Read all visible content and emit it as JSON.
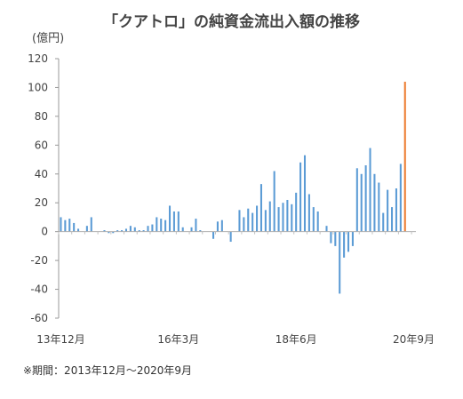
{
  "chart_data": {
    "type": "bar",
    "title": "「クアトロ」の純資金流出入額の推移",
    "ylabel": "(億円)",
    "xlabel": "",
    "ylim": [
      -60,
      120
    ],
    "yticks": [
      -60,
      -40,
      -20,
      0,
      20,
      40,
      60,
      80,
      100,
      120
    ],
    "grid": false,
    "x_tick_labels": [
      "13年12月",
      "16年3月",
      "18年6月",
      "20年9月"
    ],
    "x_tick_indices": [
      0,
      27,
      54,
      81
    ],
    "categories": [
      "2013-12",
      "2014-01",
      "2014-02",
      "2014-03",
      "2014-04",
      "2014-05",
      "2014-06",
      "2014-07",
      "2014-08",
      "2014-09",
      "2014-10",
      "2014-11",
      "2014-12",
      "2015-01",
      "2015-02",
      "2015-03",
      "2015-04",
      "2015-05",
      "2015-06",
      "2015-07",
      "2015-08",
      "2015-09",
      "2015-10",
      "2015-11",
      "2015-12",
      "2016-01",
      "2016-02",
      "2016-03",
      "2016-04",
      "2016-05",
      "2016-06",
      "2016-07",
      "2016-08",
      "2016-09",
      "2016-10",
      "2016-11",
      "2016-12",
      "2017-01",
      "2017-02",
      "2017-03",
      "2017-04",
      "2017-05",
      "2017-06",
      "2017-07",
      "2017-08",
      "2017-09",
      "2017-10",
      "2017-11",
      "2017-12",
      "2018-01",
      "2018-02",
      "2018-03",
      "2018-04",
      "2018-05",
      "2018-06",
      "2018-07",
      "2018-08",
      "2018-09",
      "2018-10",
      "2018-11",
      "2018-12",
      "2019-01",
      "2019-02",
      "2019-03",
      "2019-04",
      "2019-05",
      "2019-06",
      "2019-07",
      "2019-08",
      "2019-09",
      "2019-10",
      "2019-11",
      "2019-12",
      "2020-01",
      "2020-02",
      "2020-03",
      "2020-04",
      "2020-05",
      "2020-06",
      "2020-07",
      "2020-08",
      "2020-09"
    ],
    "values": [
      10,
      8,
      9,
      6,
      2,
      0,
      4,
      10,
      0,
      0,
      1,
      -1,
      -1,
      1,
      1,
      2,
      4,
      3,
      1,
      1,
      4,
      5,
      10,
      9,
      8,
      18,
      14,
      14,
      3,
      0,
      3,
      9,
      1,
      0,
      0,
      -5,
      7,
      8,
      0,
      -7,
      0,
      15,
      10,
      16,
      13,
      18,
      33,
      15,
      21,
      42,
      17,
      20,
      22,
      19,
      27,
      48,
      53,
      26,
      17,
      14,
      0,
      4,
      -8,
      -10,
      -43,
      -18,
      -14,
      -10,
      44,
      40,
      46,
      58,
      40,
      34,
      13,
      29,
      17,
      30,
      47,
      104,
      0,
      0
    ],
    "series": [
      {
        "values_source": "values",
        "color": "#5b9bd5"
      }
    ],
    "highlight": {
      "index": 79,
      "color": "#ed7d31"
    }
  },
  "footnote": "※期間：2013年12月～2020年9月"
}
